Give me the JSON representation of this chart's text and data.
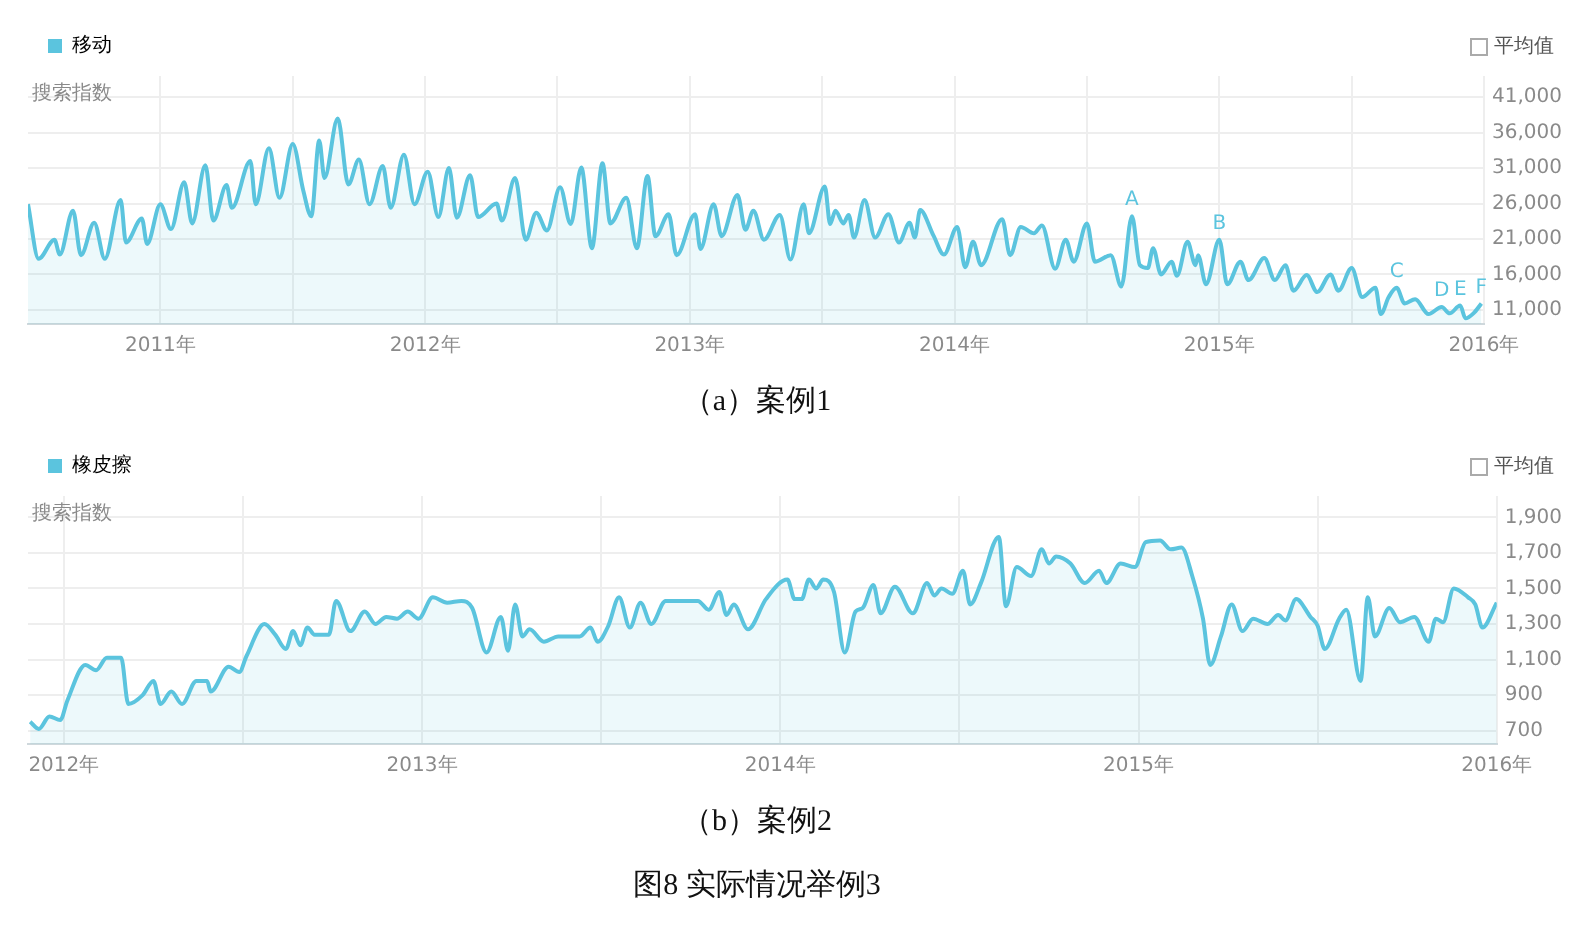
{
  "chart_data": [
    {
      "type": "area",
      "title": "（a）案例1",
      "ylabel": "搜索指数",
      "legend": "top left",
      "grid": true,
      "marker": "none",
      "annotations": [
        "平均值",
        {
          "text": "A",
          "x": 2014.67,
          "y": 24200
        },
        {
          "text": "B",
          "x": 2015.0,
          "y": 20900
        },
        {
          "text": "C",
          "x": 2015.67,
          "y": 14100
        },
        {
          "text": "D",
          "x": 2015.84,
          "y": 11400
        },
        {
          "text": "E",
          "x": 2015.91,
          "y": 11600
        },
        {
          "text": "F",
          "x": 2015.99,
          "y": 11900
        }
      ],
      "xlim": [
        2010.5,
        2016.0
      ],
      "xticks": [
        {
          "value": 2011,
          "label": "2011年"
        },
        {
          "value": 2011.5,
          "label": null
        },
        {
          "value": 2012,
          "label": "2012年"
        },
        {
          "value": 2012.5,
          "label": null
        },
        {
          "value": 2013,
          "label": "2013年"
        },
        {
          "value": 2013.5,
          "label": null
        },
        {
          "value": 2014,
          "label": "2014年"
        },
        {
          "value": 2014.5,
          "label": null
        },
        {
          "value": 2015,
          "label": "2015年"
        },
        {
          "value": 2015.5,
          "label": null
        },
        {
          "value": 2016,
          "label": "2016年"
        }
      ],
      "ylim": [
        9000,
        44000
      ],
      "yticks": [
        {
          "value": 11000,
          "label": "11,000"
        },
        {
          "value": 16000,
          "label": "16,000"
        },
        {
          "value": 21000,
          "label": "21,000"
        },
        {
          "value": 26000,
          "label": "26,000"
        },
        {
          "value": 31000,
          "label": "31,000"
        },
        {
          "value": 36000,
          "label": "36,000"
        },
        {
          "value": 41000,
          "label": "41,000"
        }
      ],
      "x": [
        2010.5,
        2010.54,
        2010.6,
        2010.62,
        2010.67,
        2010.7,
        2010.75,
        2010.79,
        2010.85,
        2010.87,
        2010.93,
        2010.95,
        2011.0,
        2011.04,
        2011.09,
        2011.12,
        2011.17,
        2011.2,
        2011.25,
        2011.27,
        2011.34,
        2011.36,
        2011.41,
        2011.45,
        2011.5,
        2011.54,
        2011.57,
        2011.6,
        2011.62,
        2011.67,
        2011.71,
        2011.75,
        2011.79,
        2011.84,
        2011.87,
        2011.92,
        2011.96,
        2012.01,
        2012.05,
        2012.09,
        2012.12,
        2012.17,
        2012.2,
        2012.27,
        2012.29,
        2012.34,
        2012.38,
        2012.42,
        2012.46,
        2012.51,
        2012.55,
        2012.59,
        2012.63,
        2012.67,
        2012.7,
        2012.76,
        2012.8,
        2012.84,
        2012.87,
        2012.92,
        2012.95,
        2013.02,
        2013.04,
        2013.09,
        2013.12,
        2013.18,
        2013.21,
        2013.24,
        2013.28,
        2013.34,
        2013.38,
        2013.43,
        2013.45,
        2013.51,
        2013.53,
        2013.55,
        2013.58,
        2013.6,
        2013.62,
        2013.66,
        2013.7,
        2013.75,
        2013.79,
        2013.83,
        2013.85,
        2013.87,
        2013.92,
        2013.96,
        2014.01,
        2014.04,
        2014.07,
        2014.1,
        2014.18,
        2014.21,
        2014.25,
        2014.3,
        2014.33,
        2014.38,
        2014.42,
        2014.45,
        2014.5,
        2014.53,
        2014.59,
        2014.63,
        2014.67,
        2014.7,
        2014.73,
        2014.75,
        2014.78,
        2014.82,
        2014.84,
        2014.88,
        2014.91,
        2014.92,
        2014.95,
        2015.0,
        2015.03,
        2015.08,
        2015.11,
        2015.17,
        2015.21,
        2015.25,
        2015.28,
        2015.33,
        2015.37,
        2015.42,
        2015.45,
        2015.5,
        2015.54,
        2015.59,
        2015.61,
        2015.64,
        2015.67,
        2015.7,
        2015.74,
        2015.79,
        2015.84,
        2015.87,
        2015.91,
        2015.93,
        2015.96,
        2015.99
      ],
      "series": [
        {
          "name": "移动",
          "color": "#5bc4de",
          "values": [
            25900,
            18200,
            20900,
            18800,
            25000,
            18700,
            23300,
            18200,
            26500,
            20500,
            23900,
            20300,
            25900,
            22400,
            29000,
            23200,
            31400,
            23600,
            28600,
            25400,
            32000,
            25900,
            33800,
            26800,
            34400,
            27800,
            24200,
            34900,
            29600,
            38000,
            28700,
            32200,
            25900,
            31300,
            25400,
            32900,
            25900,
            30500,
            24100,
            31000,
            24000,
            30000,
            24100,
            26000,
            23600,
            29600,
            20900,
            24700,
            22200,
            28300,
            23100,
            31100,
            19700,
            31700,
            23200,
            26800,
            19700,
            29900,
            21400,
            24500,
            18700,
            24500,
            19600,
            25900,
            21400,
            27200,
            22300,
            25000,
            20900,
            24400,
            18100,
            25900,
            21800,
            28400,
            23100,
            25000,
            23200,
            24400,
            21200,
            26500,
            21200,
            24500,
            20500,
            23300,
            21200,
            25100,
            21500,
            18800,
            22700,
            17000,
            20600,
            17300,
            23800,
            18700,
            22700,
            21800,
            22900,
            16800,
            20900,
            17800,
            23200,
            17800,
            18700,
            14300,
            24200,
            17300,
            16900,
            19700,
            16000,
            17800,
            15800,
            20600,
            17300,
            18700,
            14600,
            20900,
            14600,
            17800,
            15200,
            18300,
            15200,
            17300,
            13700,
            15900,
            13500,
            16000,
            13700,
            16900,
            12800,
            14100,
            10400,
            12800,
            14100,
            11900,
            12500,
            10400,
            11400,
            10500,
            11600,
            9800,
            10500,
            11900
          ]
        }
      ]
    },
    {
      "type": "area",
      "title": "（b）案例2",
      "ylabel": "搜索指数",
      "legend": "top left",
      "grid": true,
      "marker": "none",
      "annotations": [
        "平均值",
        "图8  实际情况举例3"
      ],
      "xlim": [
        2011.9,
        2016.0
      ],
      "xticks": [
        {
          "value": 2012,
          "label": "2012年"
        },
        {
          "value": 2012.5,
          "label": null
        },
        {
          "value": 2013,
          "label": "2013年"
        },
        {
          "value": 2013.5,
          "label": null
        },
        {
          "value": 2014,
          "label": "2014年"
        },
        {
          "value": 2014.5,
          "label": null
        },
        {
          "value": 2015,
          "label": "2015年"
        },
        {
          "value": 2015.5,
          "label": null
        },
        {
          "value": 2016,
          "label": "2016年"
        }
      ],
      "ylim": [
        625,
        2020
      ],
      "yticks": [
        700,
        900,
        {
          "value": 1100,
          "label": "1,100"
        },
        {
          "value": 1300,
          "label": "1,300"
        },
        {
          "value": 1500,
          "label": "1,500"
        },
        {
          "value": 1700,
          "label": "1,700"
        },
        {
          "value": 1900,
          "label": "1,900"
        }
      ],
      "x": [
        2011.906,
        2011.93,
        2011.96,
        2011.99,
        2012.01,
        2012.06,
        2012.09,
        2012.12,
        2012.16,
        2012.18,
        2012.22,
        2012.25,
        2012.27,
        2012.3,
        2012.33,
        2012.37,
        2012.4,
        2012.41,
        2012.46,
        2012.49,
        2012.51,
        2012.56,
        2012.59,
        2012.62,
        2012.64,
        2012.66,
        2012.68,
        2012.7,
        2012.74,
        2012.76,
        2012.8,
        2012.84,
        2012.87,
        2012.9,
        2012.93,
        2012.96,
        2012.99,
        2013.03,
        2013.07,
        2013.11,
        2013.14,
        2013.18,
        2013.22,
        2013.24,
        2013.26,
        2013.28,
        2013.3,
        2013.34,
        2013.38,
        2013.44,
        2013.47,
        2013.49,
        2013.52,
        2013.55,
        2013.58,
        2013.61,
        2013.64,
        2013.68,
        2013.77,
        2013.8,
        2013.83,
        2013.85,
        2013.87,
        2013.91,
        2013.96,
        2014.02,
        2014.04,
        2014.06,
        2014.08,
        2014.1,
        2014.12,
        2014.15,
        2014.18,
        2014.21,
        2014.23,
        2014.26,
        2014.28,
        2014.32,
        2014.37,
        2014.41,
        2014.43,
        2014.45,
        2014.48,
        2014.51,
        2014.53,
        2014.56,
        2014.61,
        2014.63,
        2014.66,
        2014.7,
        2014.73,
        2014.75,
        2014.77,
        2014.81,
        2014.85,
        2014.89,
        2014.91,
        2014.95,
        2014.99,
        2015.02,
        2015.06,
        2015.09,
        2015.12,
        2015.15,
        2015.18,
        2015.2,
        2015.23,
        2015.26,
        2015.29,
        2015.32,
        2015.36,
        2015.39,
        2015.41,
        2015.44,
        2015.48,
        2015.5,
        2015.52,
        2015.56,
        2015.58,
        2015.62,
        2015.64,
        2015.66,
        2015.7,
        2015.73,
        2015.77,
        2015.81,
        2015.83,
        2015.85,
        2015.88,
        2015.92,
        2015.94,
        2015.96,
        2016.0
      ],
      "series": [
        {
          "name": "橡皮擦",
          "color": "#5bc4de",
          "values": [
            750,
            710,
            780,
            760,
            870,
            1070,
            1040,
            1110,
            1110,
            850,
            900,
            980,
            850,
            920,
            850,
            980,
            980,
            920,
            1060,
            1030,
            1120,
            1300,
            1240,
            1160,
            1260,
            1180,
            1280,
            1240,
            1240,
            1430,
            1260,
            1370,
            1300,
            1340,
            1330,
            1370,
            1330,
            1450,
            1420,
            1430,
            1390,
            1140,
            1340,
            1150,
            1410,
            1230,
            1270,
            1200,
            1230,
            1230,
            1280,
            1200,
            1290,
            1450,
            1280,
            1420,
            1300,
            1430,
            1430,
            1380,
            1480,
            1350,
            1410,
            1270,
            1440,
            1550,
            1440,
            1440,
            1550,
            1500,
            1550,
            1480,
            1140,
            1370,
            1390,
            1520,
            1360,
            1510,
            1360,
            1530,
            1460,
            1500,
            1470,
            1600,
            1410,
            1530,
            1790,
            1400,
            1620,
            1570,
            1720,
            1640,
            1680,
            1640,
            1530,
            1600,
            1530,
            1640,
            1620,
            1760,
            1770,
            1720,
            1730,
            1570,
            1330,
            1070,
            1230,
            1410,
            1260,
            1330,
            1300,
            1350,
            1320,
            1440,
            1340,
            1290,
            1160,
            1330,
            1380,
            980,
            1450,
            1230,
            1390,
            1310,
            1340,
            1200,
            1330,
            1310,
            1500,
            1450,
            1410,
            1280,
            1420
          ]
        }
      ]
    }
  ]
}
